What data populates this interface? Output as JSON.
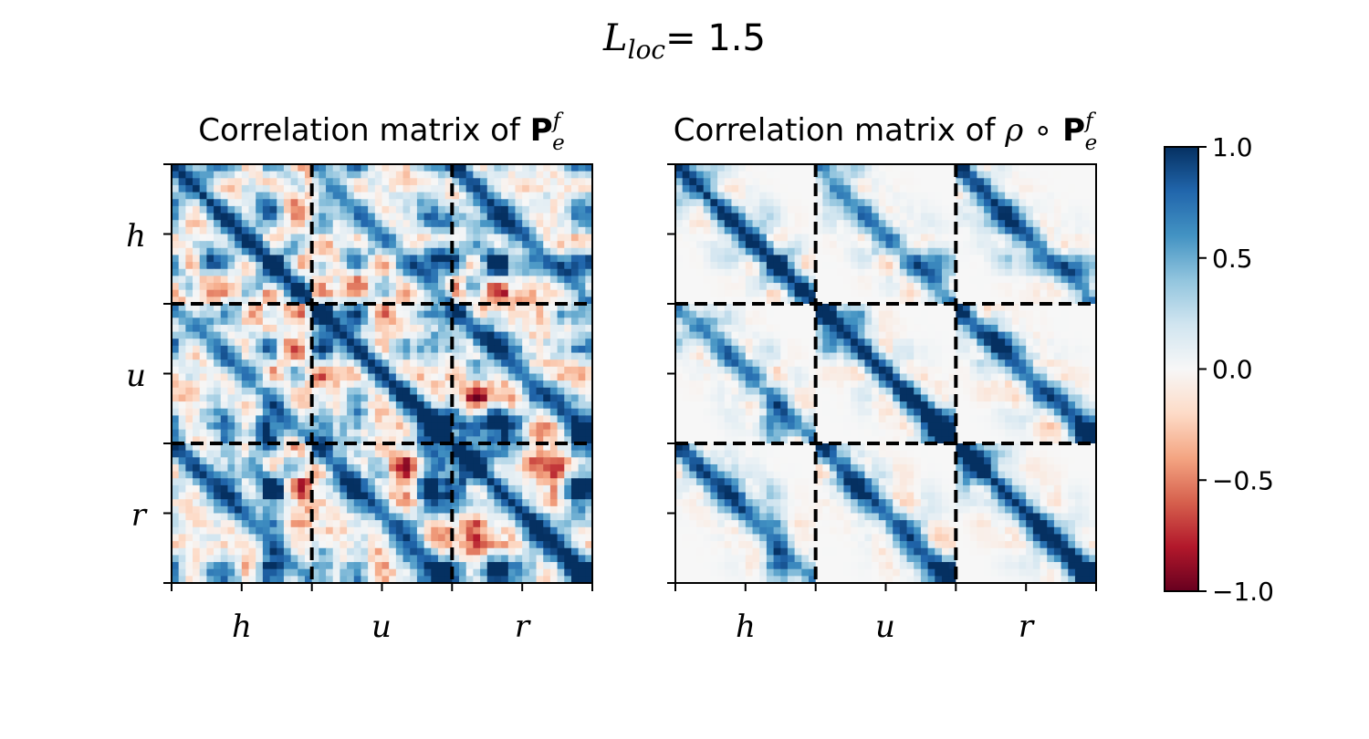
{
  "figure": {
    "suptitle_symbol": "L",
    "suptitle_subscript": "loc",
    "suptitle_value": "= 1.5"
  },
  "chart_data": [
    {
      "type": "heatmap",
      "title_prefix": "Correlation matrix of ",
      "title_symbol": "P",
      "title_sup": "f",
      "title_sub": "e",
      "matrix": "P_e^f",
      "blocks": [
        "h",
        "u",
        "r"
      ],
      "xticklabels": [
        "h",
        "u",
        "r"
      ],
      "yticklabels": [
        "h",
        "u",
        "r"
      ],
      "value_range": [
        -1.0,
        1.0
      ],
      "diagonal_value": 1.0,
      "block_separators": "dashed black lines between h/u/r blocks",
      "description": "dense noisy correlations across all blocks"
    },
    {
      "type": "heatmap",
      "title_prefix": "Correlation matrix of ",
      "title_rho": "ρ",
      "title_op": " ∘ ",
      "title_symbol": "P",
      "title_sup": "f",
      "title_sub": "e",
      "matrix": "rho ∘ P_e^f",
      "blocks": [
        "h",
        "u",
        "r"
      ],
      "xticklabels": [
        "h",
        "u",
        "r"
      ],
      "yticklabels": [
        "",
        "",
        ""
      ],
      "value_range": [
        -1.0,
        1.0
      ],
      "diagonal_value": 1.0,
      "block_separators": "dashed black lines between h/u/r blocks",
      "description": "localized (tapered) correlations concentrated near block diagonals"
    }
  ],
  "colorbar": {
    "colormap": "RdBu",
    "colors": [
      "#67001f",
      "#b2182b",
      "#d6604d",
      "#f4a582",
      "#fddbc7",
      "#f7f7f7",
      "#d1e5f0",
      "#92c5de",
      "#4393c3",
      "#2166ac",
      "#053061"
    ],
    "ticks": [
      1.0,
      0.5,
      0.0,
      -0.5,
      -1.0
    ],
    "ticklabels": [
      "1.0",
      "0.5",
      "0.0",
      "−0.5",
      "−1.0"
    ]
  }
}
